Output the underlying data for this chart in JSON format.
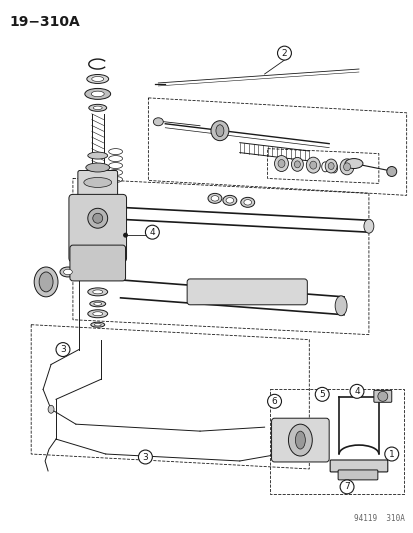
{
  "title": "19−310A",
  "watermark": "94119  310A",
  "bg_color": "#ffffff",
  "fg_color": "#1a1a1a",
  "fig_width": 4.14,
  "fig_height": 5.33,
  "dpi": 100
}
